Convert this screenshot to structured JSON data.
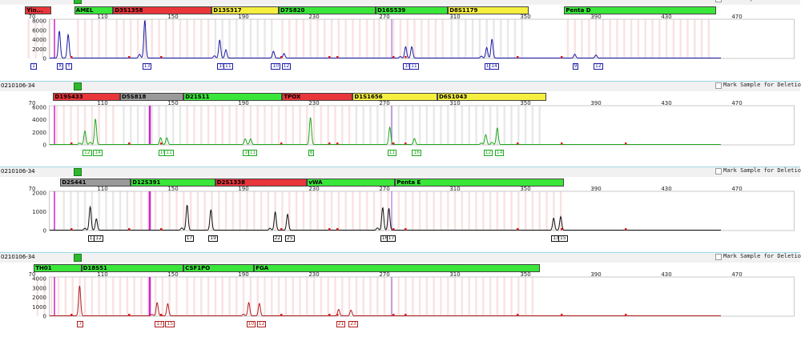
{
  "axis": {
    "tick_labels": [
      "70",
      "110",
      "150",
      "190",
      "230",
      "270",
      "310",
      "350",
      "390",
      "430",
      "470"
    ]
  },
  "mark_label": "Mark Sample for Deletion",
  "colors": {
    "red": "#e8363b",
    "green": "#39e639",
    "gray": "#9a9a9a",
    "yellow": "#f5ef3f",
    "blue_trace": "#1a1aa8",
    "green_trace": "#1fa81f",
    "black_trace": "#111111",
    "red_trace": "#b01d1d",
    "bin_red": "#f6d3d3",
    "bin_gray": "#dcdcdc",
    "magenta": "#cc22cc",
    "violet": "#9b59d9",
    "panel_border": "#9fd7e6"
  },
  "panels": [
    {
      "sample": "",
      "trace_color": "#1a1aa8",
      "y_ticks": [
        "8000",
        "6000",
        "4000",
        "2000",
        "0"
      ],
      "loci": [
        {
          "name": "Yin...",
          "start": 66,
          "end": 81,
          "color": "red"
        },
        {
          "name": "AMEL",
          "start": 94,
          "end": 116,
          "color": "green"
        },
        {
          "name": "D3S1358",
          "start": 116,
          "end": 172,
          "color": "red"
        },
        {
          "name": "D13S317",
          "start": 172,
          "end": 210,
          "color": "yellow"
        },
        {
          "name": "D7S820",
          "start": 210,
          "end": 265,
          "color": "green"
        },
        {
          "name": "D16S539",
          "start": 265,
          "end": 306,
          "color": "green"
        },
        {
          "name": "D8S1179",
          "start": 306,
          "end": 352,
          "color": "yellow"
        },
        {
          "name": "Penta D",
          "start": 372,
          "end": 458,
          "color": "green"
        }
      ],
      "peaks": [
        {
          "bp": 70.5,
          "h": 0.82,
          "label": "1"
        },
        {
          "bp": 85.5,
          "h": 0.72,
          "label": "X"
        },
        {
          "bp": 90.5,
          "h": 0.62,
          "label": "Y"
        },
        {
          "bp": 134,
          "h": 1.0,
          "label": "13"
        },
        {
          "bp": 176.5,
          "h": 0.48,
          "label": "10"
        },
        {
          "bp": 180,
          "h": 0.22,
          "label": "11"
        },
        {
          "bp": 207,
          "h": 0.18,
          "label": "10"
        },
        {
          "bp": 213,
          "h": 0.12,
          "label": "12"
        },
        {
          "bp": 282,
          "h": 0.3,
          "label": "10"
        },
        {
          "bp": 285.5,
          "h": 0.3,
          "label": "11"
        },
        {
          "bp": 328,
          "h": 0.28,
          "label": "13"
        },
        {
          "bp": 331,
          "h": 0.5,
          "label": "14"
        },
        {
          "bp": 378,
          "h": 0.1,
          "label": "9"
        },
        {
          "bp": 390,
          "h": 0.08,
          "label": "12"
        }
      ],
      "minor": [
        {
          "bp": 131,
          "h": 0.1
        },
        {
          "bp": 173.5,
          "h": 0.06
        },
        {
          "bp": 279,
          "h": 0.04
        },
        {
          "bp": 325,
          "h": 0.05
        }
      ]
    },
    {
      "sample": "0210106-34",
      "trace_color": "#1fa81f",
      "y_ticks": [
        "6000",
        "4000",
        "2000",
        "0"
      ],
      "loci": [
        {
          "name": "D19S433",
          "start": 82,
          "end": 120,
          "color": "red"
        },
        {
          "name": "D5S818",
          "start": 120,
          "end": 156,
          "color": "gray"
        },
        {
          "name": "D21S11",
          "start": 156,
          "end": 212,
          "color": "green"
        },
        {
          "name": "TPOX",
          "start": 212,
          "end": 252,
          "color": "red"
        },
        {
          "name": "D1S1656",
          "start": 252,
          "end": 300,
          "color": "yellow"
        },
        {
          "name": "D6S1043",
          "start": 300,
          "end": 362,
          "color": "yellow"
        }
      ],
      "peaks": [
        {
          "bp": 100,
          "h": 0.36,
          "label": "12"
        },
        {
          "bp": 106,
          "h": 0.68,
          "label": "14"
        },
        {
          "bp": 143,
          "h": 0.18,
          "label": "10"
        },
        {
          "bp": 146.5,
          "h": 0.18,
          "label": "11"
        },
        {
          "bp": 191,
          "h": 0.15,
          "label": "10"
        },
        {
          "bp": 194,
          "h": 0.15,
          "label": "11"
        },
        {
          "bp": 228,
          "h": 0.72,
          "label": "8"
        },
        {
          "bp": 273,
          "h": 0.46,
          "label": "11"
        },
        {
          "bp": 287,
          "h": 0.16,
          "label": "16"
        },
        {
          "bp": 327.5,
          "h": 0.26,
          "label": "12"
        },
        {
          "bp": 334,
          "h": 0.44,
          "label": "14"
        }
      ],
      "minor": [
        {
          "bp": 97,
          "h": 0.04
        },
        {
          "bp": 103,
          "h": 0.06
        },
        {
          "bp": 325,
          "h": 0.04
        },
        {
          "bp": 331,
          "h": 0.06
        }
      ]
    },
    {
      "sample": "0210106-34",
      "trace_color": "#111111",
      "y_ticks": [
        "2000",
        "1000",
        "0"
      ],
      "loci": [
        {
          "name": "D2S441",
          "start": 86,
          "end": 126,
          "color": "gray"
        },
        {
          "name": "D12S391",
          "start": 126,
          "end": 174,
          "color": "green"
        },
        {
          "name": "D2S1338",
          "start": 174,
          "end": 226,
          "color": "red"
        },
        {
          "name": "vWA",
          "start": 226,
          "end": 276,
          "color": "green"
        },
        {
          "name": "Penta E",
          "start": 276,
          "end": 372,
          "color": "green"
        }
      ],
      "peaks": [
        {
          "bp": 103,
          "h": 0.62,
          "label": "11"
        },
        {
          "bp": 106.5,
          "h": 0.3,
          "label": "12"
        },
        {
          "bp": 158,
          "h": 0.67,
          "label": "17"
        },
        {
          "bp": 171.5,
          "h": 0.54,
          "label": "19"
        },
        {
          "bp": 208,
          "h": 0.48,
          "label": "22"
        },
        {
          "bp": 215,
          "h": 0.42,
          "label": "25"
        },
        {
          "bp": 269,
          "h": 0.6,
          "label": "16"
        },
        {
          "bp": 272.5,
          "h": 0.58,
          "label": "17"
        },
        {
          "bp": 366,
          "h": 0.32,
          "label": "13"
        },
        {
          "bp": 370,
          "h": 0.36,
          "label": "15"
        }
      ],
      "minor": [
        {
          "bp": 100,
          "h": 0.05
        },
        {
          "bp": 155,
          "h": 0.06
        },
        {
          "bp": 205,
          "h": 0.05
        },
        {
          "bp": 266,
          "h": 0.06
        }
      ]
    },
    {
      "sample": "0210106-34",
      "trace_color": "#b01d1d",
      "y_ticks": [
        "4000",
        "3000",
        "2000",
        "1000",
        "0"
      ],
      "loci": [
        {
          "name": "TH01",
          "start": 71,
          "end": 98,
          "color": "green"
        },
        {
          "name": "D18S51",
          "start": 98,
          "end": 156,
          "color": "green"
        },
        {
          "name": "CSF1PO",
          "start": 156,
          "end": 196,
          "color": "green"
        },
        {
          "name": "FGA",
          "start": 196,
          "end": 358,
          "color": "green"
        }
      ],
      "peaks": [
        {
          "bp": 97,
          "h": 0.8,
          "label": "7"
        },
        {
          "bp": 141,
          "h": 0.35,
          "label": "13"
        },
        {
          "bp": 147,
          "h": 0.32,
          "label": "15"
        },
        {
          "bp": 193,
          "h": 0.35,
          "label": "10"
        },
        {
          "bp": 199,
          "h": 0.33,
          "label": "12"
        },
        {
          "bp": 244,
          "h": 0.17,
          "label": "21"
        },
        {
          "bp": 251,
          "h": 0.15,
          "label": "23"
        }
      ],
      "minor": [
        {
          "bp": 138,
          "h": 0.04
        },
        {
          "bp": 190,
          "h": 0.04
        }
      ]
    }
  ]
}
